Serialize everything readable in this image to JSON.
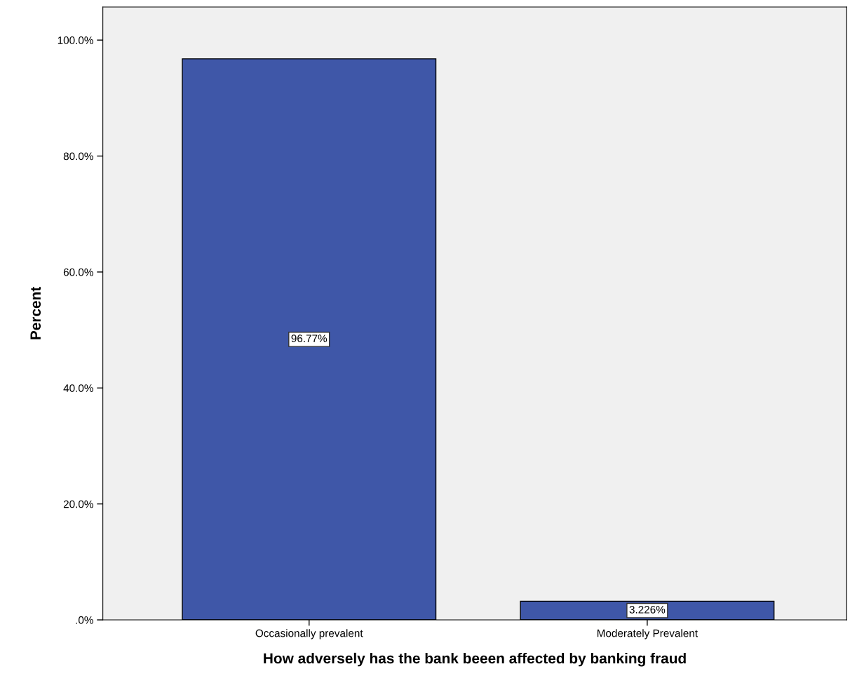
{
  "chart_data": {
    "type": "bar",
    "xlabel": "How adversely has the bank beeen affected by banking fraud",
    "ylabel": "Percent",
    "categories": [
      "Occasionally prevalent",
      "Moderately Prevalent"
    ],
    "values": [
      96.77,
      3.226
    ],
    "value_labels": [
      "96.77%",
      "3.226%"
    ],
    "color": "#3f57a8",
    "ylim": [
      0,
      105.7
    ],
    "yticks": [
      {
        "value": 0,
        "label": ".0%"
      },
      {
        "value": 20,
        "label": "20.0%"
      },
      {
        "value": 40,
        "label": "40.0%"
      },
      {
        "value": 60,
        "label": "60.0%"
      },
      {
        "value": 80,
        "label": "80.0%"
      },
      {
        "value": 100,
        "label": "100.0%"
      }
    ],
    "grid": false
  }
}
